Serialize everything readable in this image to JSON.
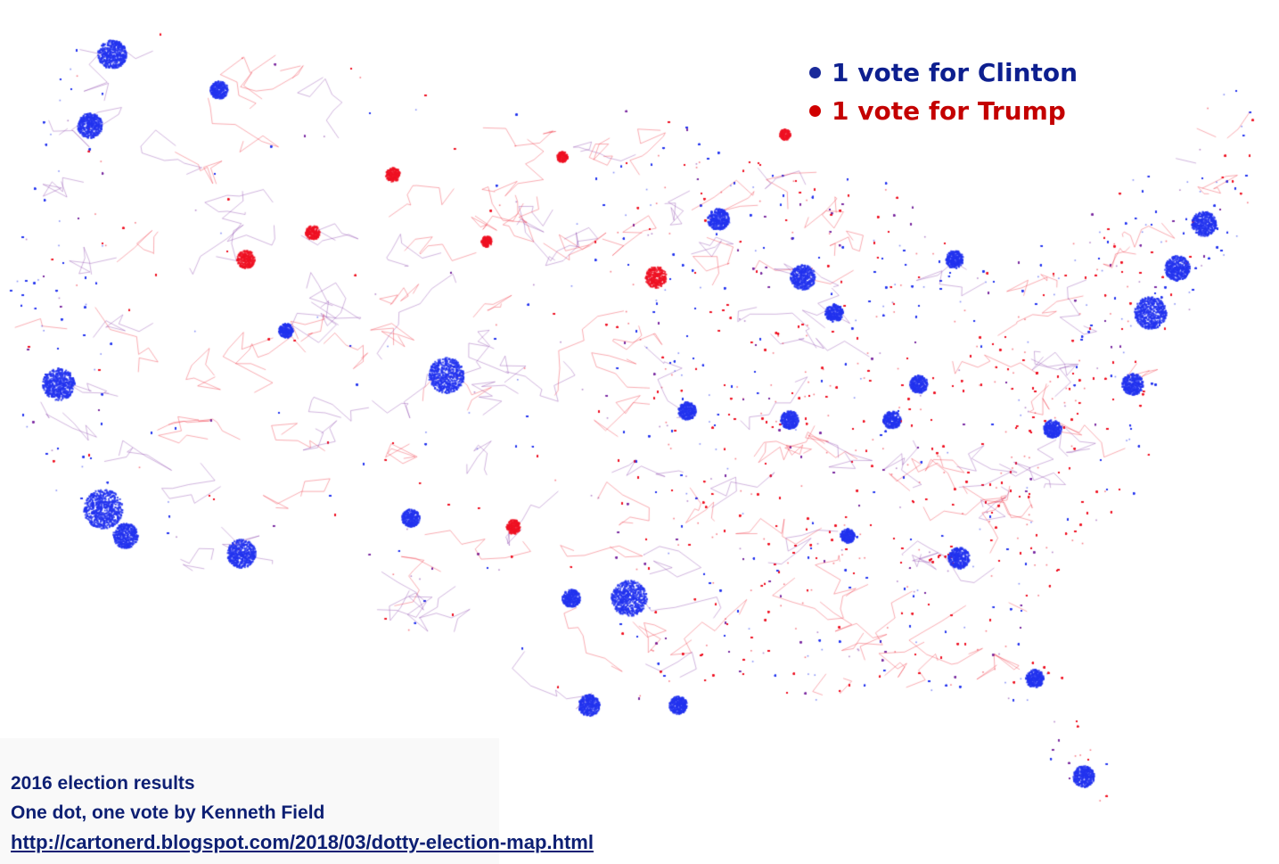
{
  "legend": {
    "items": [
      {
        "label": "1 vote for Clinton",
        "color": "#0d1f8f",
        "dot_color": "#1a2a9a"
      },
      {
        "label": "1 vote for Trump",
        "color": "#c40000",
        "dot_color": "#d00000"
      }
    ]
  },
  "caption": {
    "line1": "2016 election results",
    "line2": "One dot, one vote by Kenneth Field",
    "link": "http://cartonerd.blogspot.com/2018/03/dotty-election-map.html"
  },
  "colors": {
    "clinton": "#2233ee",
    "trump": "#ee1122",
    "mixed": "#7a2aa0",
    "background": "#ffffff"
  }
}
